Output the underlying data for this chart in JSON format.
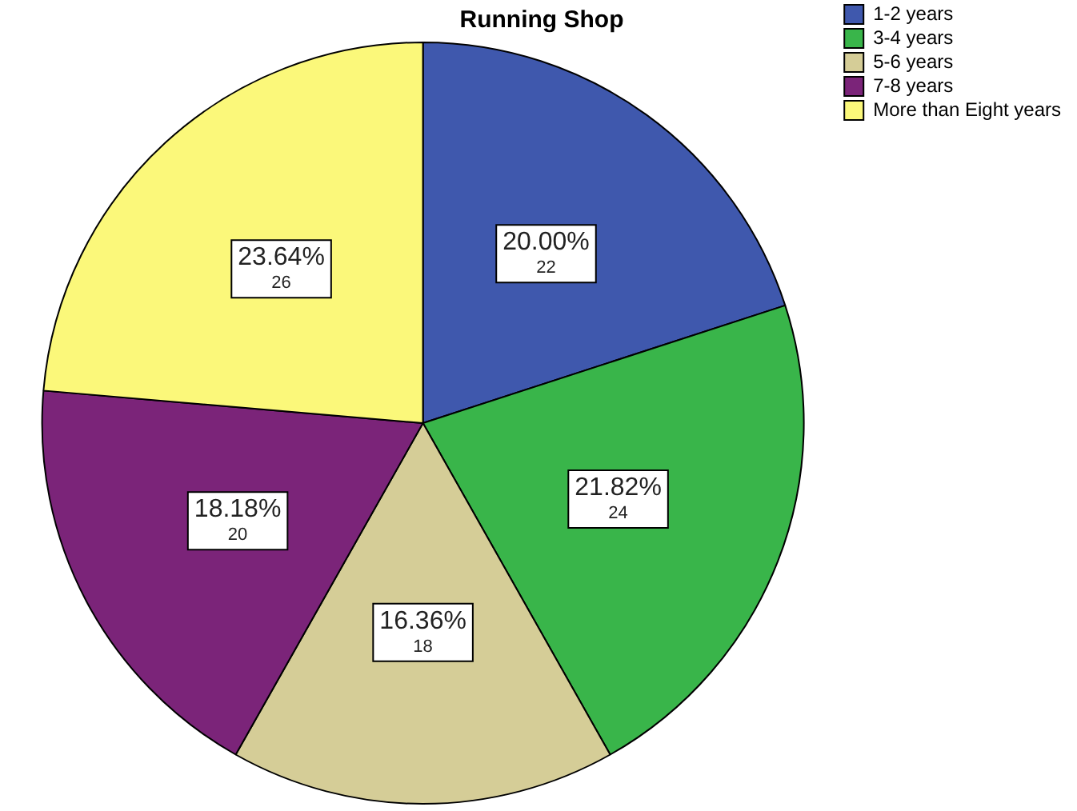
{
  "chart_data": {
    "type": "pie",
    "title": "Running Shop",
    "categories": [
      "1-2 years",
      "3-4 years",
      "5-6 years",
      "7-8 years",
      "More than Eight years"
    ],
    "values": [
      20.0,
      21.82,
      16.36,
      18.18,
      23.64
    ],
    "value_labels": [
      "20.00%\n22",
      "21.82%\n24",
      "16.36%\n18",
      "18.18%\n20",
      "23.64%\n26"
    ],
    "colors": [
      "#3f58ad",
      "#39b54a",
      "#d5cd97",
      "#7b2479",
      "#fbf87a"
    ],
    "legend": "top right"
  }
}
